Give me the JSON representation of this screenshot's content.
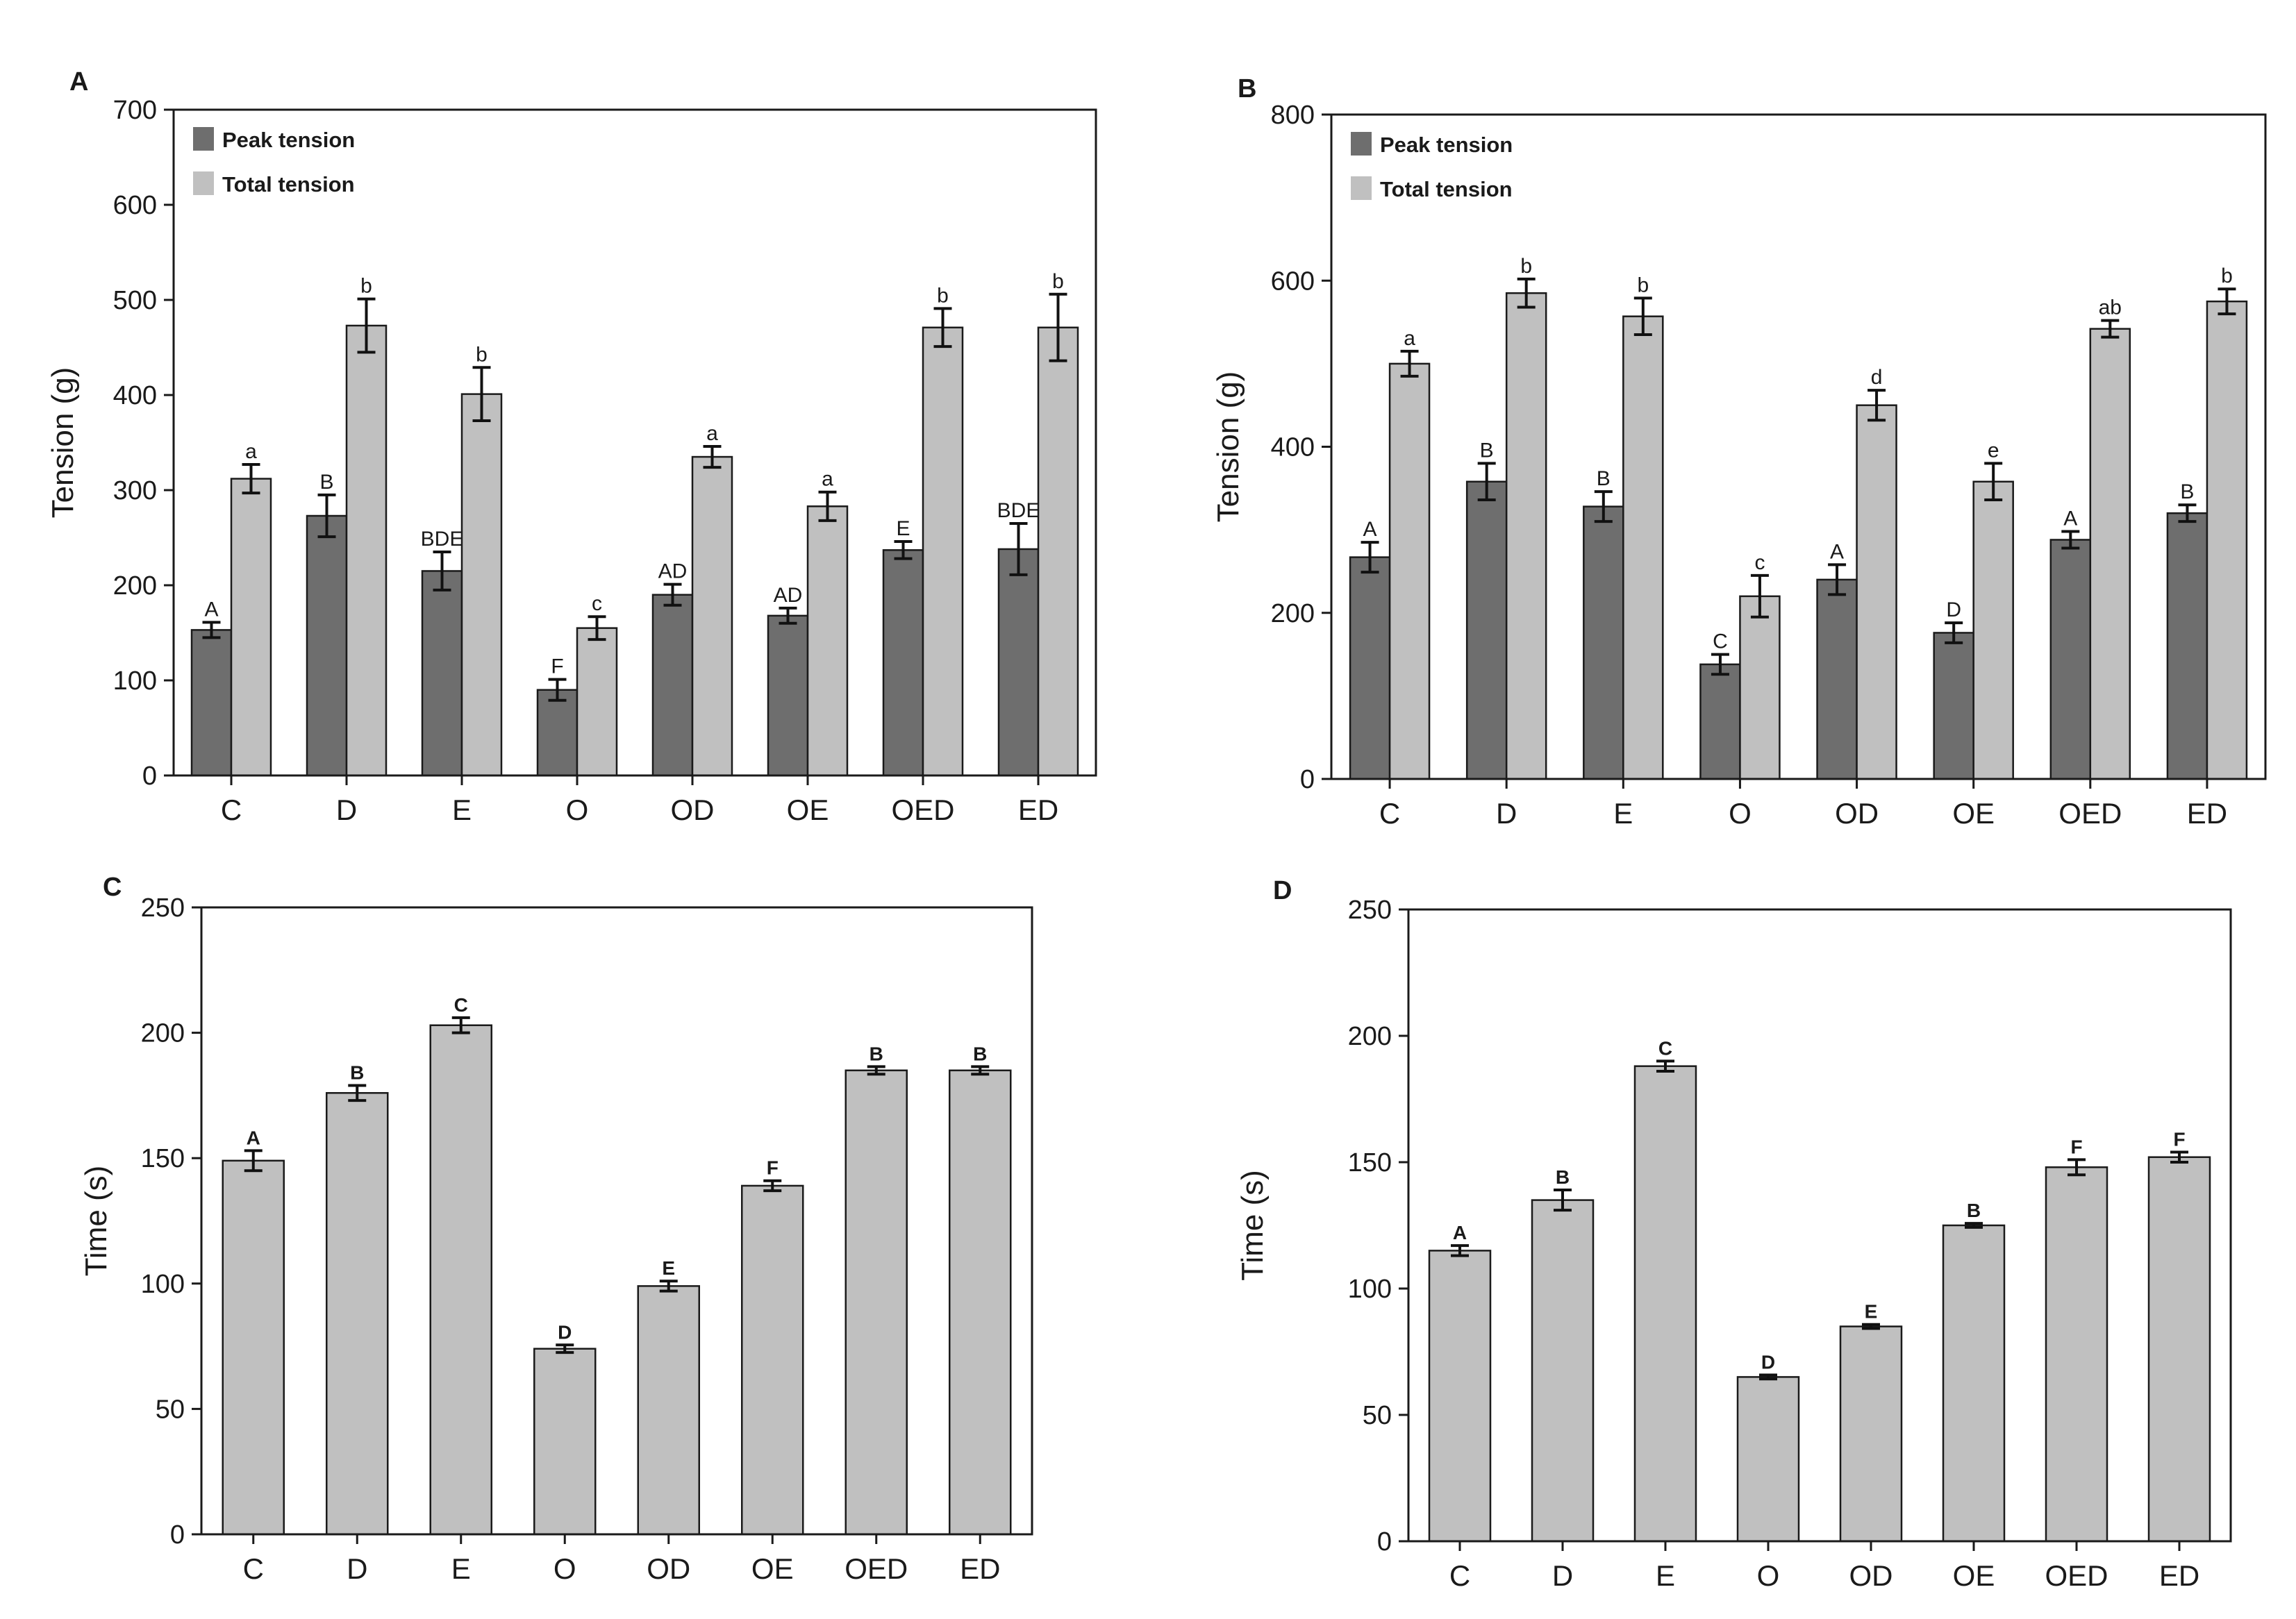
{
  "colors": {
    "peak": "#6e6e6e",
    "total": "#c0c0c0",
    "single": "#c0c0c0",
    "axis": "#1a1a1a"
  },
  "legend": {
    "peak_label": "Peak tension",
    "total_label": "Total tension"
  },
  "chart_data": [
    {
      "panel": "A",
      "type": "bar",
      "ylabel": "Tension (g)",
      "ylim": [
        0,
        700
      ],
      "yticks": [
        0,
        100,
        200,
        300,
        400,
        500,
        600,
        700
      ],
      "legend_position": "top-left",
      "categories": [
        "C",
        "D",
        "E",
        "O",
        "OD",
        "OE",
        "OED",
        "ED"
      ],
      "series": [
        {
          "name": "Peak tension",
          "values": [
            153,
            273,
            215,
            90,
            190,
            168,
            237,
            238
          ],
          "errors": [
            8,
            22,
            20,
            11,
            11,
            8,
            9,
            27
          ],
          "labels": [
            "A",
            "B",
            "BDE",
            "F",
            "AD",
            "AD",
            "E",
            "BDE"
          ]
        },
        {
          "name": "Total tension",
          "values": [
            312,
            473,
            401,
            155,
            335,
            283,
            471,
            471
          ],
          "errors": [
            15,
            28,
            28,
            12,
            11,
            15,
            20,
            35
          ],
          "labels": [
            "a",
            "b",
            "b",
            "c",
            "a",
            "a",
            "b",
            "b"
          ]
        }
      ]
    },
    {
      "panel": "B",
      "type": "bar",
      "ylabel": "Tension (g)",
      "ylim": [
        0,
        800
      ],
      "yticks": [
        0,
        200,
        400,
        600,
        800
      ],
      "legend_position": "top-left",
      "categories": [
        "C",
        "D",
        "E",
        "O",
        "OD",
        "OE",
        "OED",
        "ED"
      ],
      "series": [
        {
          "name": "Peak tension",
          "values": [
            267,
            358,
            328,
            138,
            240,
            176,
            288,
            320
          ],
          "errors": [
            18,
            22,
            18,
            12,
            18,
            12,
            10,
            10
          ],
          "labels": [
            "A",
            "B",
            "B",
            "C",
            "A",
            "D",
            "A",
            "B"
          ]
        },
        {
          "name": "Total tension",
          "values": [
            500,
            585,
            557,
            220,
            450,
            358,
            542,
            575
          ],
          "errors": [
            15,
            17,
            22,
            25,
            18,
            22,
            10,
            15
          ],
          "labels": [
            "a",
            "b",
            "b",
            "c",
            "d",
            "e",
            "ab",
            "b"
          ]
        }
      ]
    },
    {
      "panel": "C",
      "type": "bar",
      "ylabel": "Time (s)",
      "ylim": [
        0,
        250
      ],
      "yticks": [
        0,
        50,
        100,
        150,
        200,
        250
      ],
      "categories": [
        "C",
        "D",
        "E",
        "O",
        "OD",
        "OE",
        "OED",
        "ED"
      ],
      "series": [
        {
          "values": [
            149,
            176,
            203,
            74,
            99,
            139,
            185,
            185
          ],
          "errors": [
            4,
            3,
            3,
            1.5,
            2,
            2,
            1.5,
            1.5
          ],
          "labels": [
            "A",
            "B",
            "C",
            "D",
            "E",
            "F",
            "B",
            "B"
          ]
        }
      ]
    },
    {
      "panel": "D",
      "type": "bar",
      "ylabel": "Time (s)",
      "ylim": [
        0,
        250
      ],
      "yticks": [
        0,
        50,
        100,
        150,
        200,
        250
      ],
      "categories": [
        "C",
        "D",
        "E",
        "O",
        "OD",
        "OE",
        "OED",
        "ED"
      ],
      "series": [
        {
          "values": [
            115,
            135,
            188,
            65,
            85,
            125,
            148,
            152
          ],
          "errors": [
            2,
            4,
            2,
            0.8,
            0.8,
            0.8,
            3,
            2
          ],
          "labels": [
            "A",
            "B",
            "C",
            "D",
            "E",
            "B",
            "F",
            "F"
          ]
        }
      ]
    }
  ]
}
